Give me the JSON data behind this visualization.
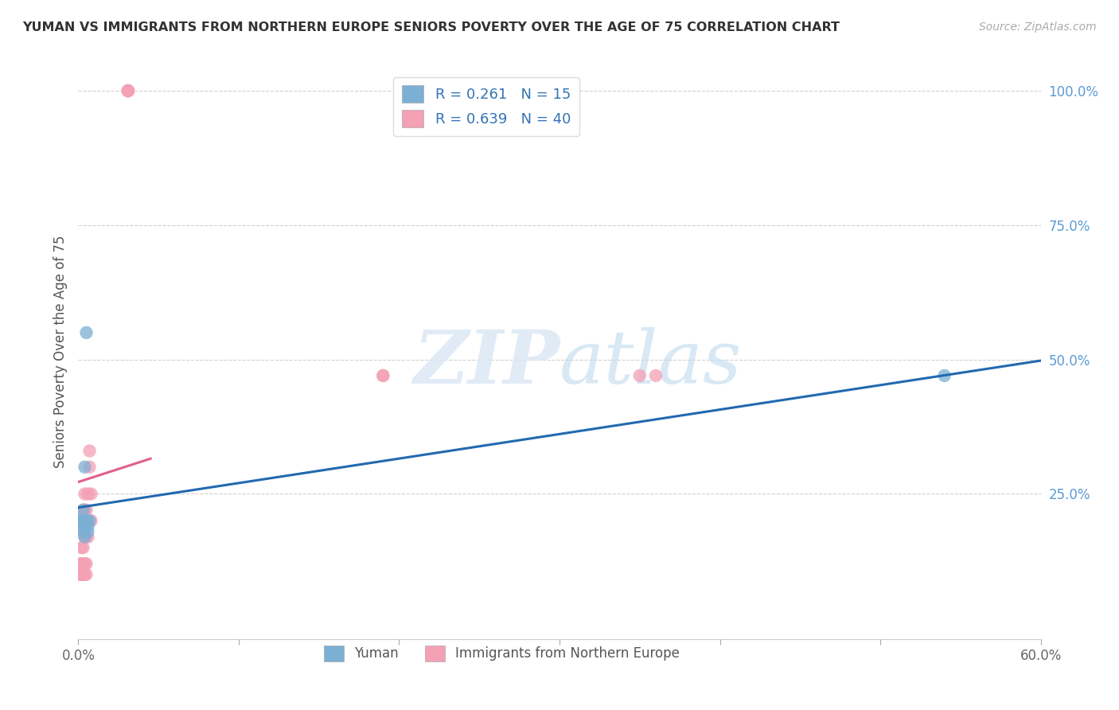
{
  "title": "YUMAN VS IMMIGRANTS FROM NORTHERN EUROPE SENIORS POVERTY OVER THE AGE OF 75 CORRELATION CHART",
  "source": "Source: ZipAtlas.com",
  "ylabel": "Seniors Poverty Over the Age of 75",
  "xlim": [
    0.0,
    0.6
  ],
  "ylim": [
    -0.02,
    1.05
  ],
  "xtick_vals": [
    0.0,
    0.1,
    0.2,
    0.3,
    0.4,
    0.5,
    0.6
  ],
  "xtick_labels_show": [
    "0.0%",
    "",
    "",
    "",
    "",
    "",
    "60.0%"
  ],
  "ytick_labels_right": [
    "100.0%",
    "75.0%",
    "50.0%",
    "25.0%"
  ],
  "ytick_vals_right": [
    1.0,
    0.75,
    0.5,
    0.25
  ],
  "legend1_label": "R = 0.261   N = 15",
  "legend2_label": "R = 0.639   N = 40",
  "yuman_color": "#7bafd4",
  "immigrants_color": "#f4a0b5",
  "yuman_line_color": "#2269b0",
  "immigrants_line_color": "#e0608a",
  "watermark_zip": "ZIP",
  "watermark_atlas": "atlas",
  "yuman_x": [
    0.001,
    0.002,
    0.002,
    0.003,
    0.003,
    0.003,
    0.004,
    0.004,
    0.004,
    0.005,
    0.005,
    0.006,
    0.006,
    0.007,
    0.54
  ],
  "yuman_y": [
    0.2,
    0.19,
    0.2,
    0.18,
    0.2,
    0.22,
    0.17,
    0.19,
    0.3,
    0.2,
    0.55,
    0.18,
    0.19,
    0.2,
    0.47
  ],
  "immigrants_x": [
    0.001,
    0.001,
    0.002,
    0.002,
    0.002,
    0.002,
    0.003,
    0.003,
    0.003,
    0.003,
    0.003,
    0.003,
    0.003,
    0.004,
    0.004,
    0.004,
    0.004,
    0.004,
    0.004,
    0.005,
    0.005,
    0.005,
    0.005,
    0.005,
    0.006,
    0.006,
    0.006,
    0.007,
    0.007,
    0.008,
    0.008,
    0.031,
    0.031,
    0.031,
    0.031,
    0.031,
    0.19,
    0.19,
    0.35,
    0.36
  ],
  "immigrants_y": [
    0.1,
    0.12,
    0.1,
    0.1,
    0.12,
    0.15,
    0.1,
    0.1,
    0.12,
    0.15,
    0.18,
    0.2,
    0.22,
    0.1,
    0.12,
    0.17,
    0.2,
    0.22,
    0.25,
    0.1,
    0.12,
    0.17,
    0.2,
    0.22,
    0.17,
    0.2,
    0.25,
    0.3,
    0.33,
    0.2,
    0.25,
    1.0,
    1.0,
    1.0,
    1.0,
    1.0,
    0.47,
    0.47,
    0.47,
    0.47
  ],
  "background_color": "#ffffff",
  "grid_color": "#d0d0d0"
}
